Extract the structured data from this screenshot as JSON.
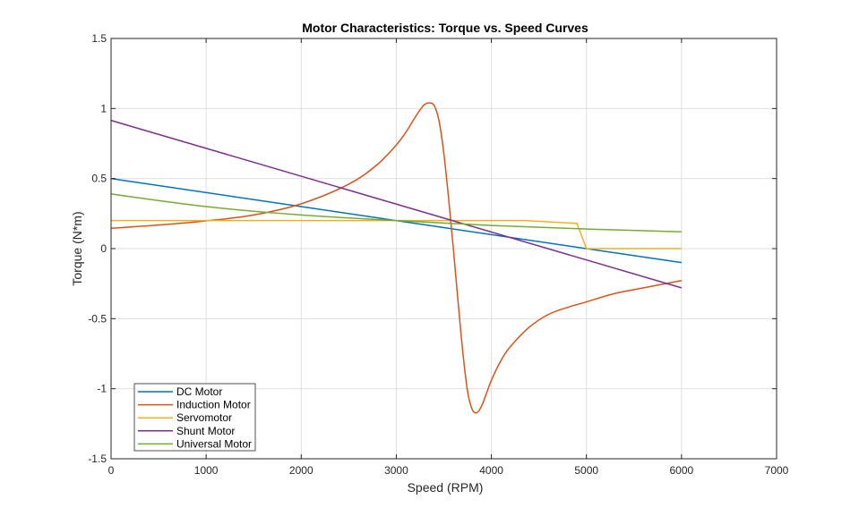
{
  "chart_data": {
    "type": "line",
    "title": "Motor Characteristics: Torque vs. Speed Curves",
    "xlabel": "Speed (RPM)",
    "ylabel": "Torque (N*m)",
    "xlim": [
      0,
      7000
    ],
    "ylim": [
      -1.5,
      1.5
    ],
    "xticks": [
      0,
      1000,
      2000,
      3000,
      4000,
      5000,
      6000,
      7000
    ],
    "xtick_labels": [
      "0",
      "1000",
      "2000",
      "3000",
      "4000",
      "5000",
      "6000",
      "7000"
    ],
    "yticks": [
      -1.5,
      -1,
      -0.5,
      0,
      0.5,
      1,
      1.5
    ],
    "ytick_labels": [
      "-1.5",
      "-1",
      "-0.5",
      "0",
      "0.5",
      "1",
      "1.5"
    ],
    "grid": true,
    "legend_position": "bottom-left",
    "series": [
      {
        "name": "DC Motor",
        "color": "#0072BD",
        "x": [
          0,
          6000
        ],
        "y": [
          0.5,
          -0.1
        ]
      },
      {
        "name": "Induction Motor",
        "color": "#D95319",
        "x": [
          0,
          500,
          1000,
          1500,
          2000,
          2500,
          2800,
          3000,
          3100,
          3200,
          3250,
          3300,
          3350,
          3400,
          3450,
          3500,
          3550,
          3600,
          3650,
          3700,
          3750,
          3800,
          3850,
          3900,
          3950,
          4000,
          4100,
          4200,
          4400,
          4600,
          4800,
          5000,
          5300,
          5600,
          6000
        ],
        "y": [
          0.145,
          0.168,
          0.198,
          0.24,
          0.32,
          0.46,
          0.6,
          0.74,
          0.83,
          0.94,
          0.99,
          1.03,
          1.04,
          1.02,
          0.91,
          0.68,
          0.36,
          0.0,
          -0.38,
          -0.74,
          -1.02,
          -1.15,
          -1.17,
          -1.12,
          -1.03,
          -0.94,
          -0.8,
          -0.7,
          -0.56,
          -0.47,
          -0.42,
          -0.38,
          -0.32,
          -0.28,
          -0.228
        ]
      },
      {
        "name": "Servomotor",
        "color": "#EDB120",
        "x": [
          0,
          4350,
          4900,
          5000,
          6000
        ],
        "y": [
          0.2,
          0.2,
          0.18,
          0.0,
          0.0
        ]
      },
      {
        "name": "Shunt Motor",
        "color": "#7E2F8E",
        "x": [
          0,
          6000
        ],
        "y": [
          0.915,
          -0.28
        ]
      },
      {
        "name": "Universal Motor",
        "color": "#77AC30",
        "x": [
          0,
          1000,
          2000,
          3000,
          4000,
          5000,
          6000
        ],
        "y": [
          0.39,
          0.3,
          0.24,
          0.2,
          0.165,
          0.14,
          0.12
        ]
      }
    ]
  }
}
